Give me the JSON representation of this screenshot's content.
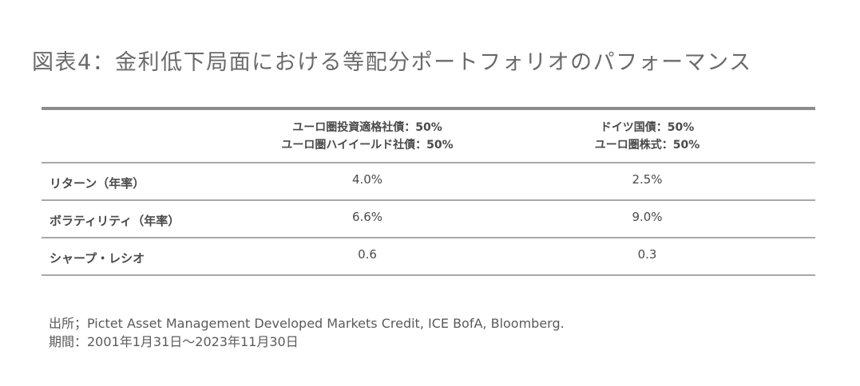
{
  "title": "図表4：金利低下局面における等配分ポートフォリオのパフォーマンス",
  "table": {
    "header": {
      "col1_line1": "ユーロ圏投資適格社債：50%",
      "col1_line2": "ユーロ圏ハイイールド社債：50%",
      "col2_line1": "ドイツ国債：50%",
      "col2_line2": "ユーロ圏株式：50%"
    },
    "rows": [
      {
        "label": "リターン（年率）",
        "col1": "4.0%",
        "col2": "2.5%"
      },
      {
        "label": "ボラティリティ（年率）",
        "col1": "6.6%",
        "col2": "9.0%"
      },
      {
        "label": "シャープ・レシオ",
        "col1": "0.6",
        "col2": "0.3"
      }
    ]
  },
  "footnote": {
    "source": "出所；Pictet Asset Management Developed Markets Credit, ICE BofA, Bloomberg.",
    "period": "期間：2001年1月31日〜2023年11月30日"
  }
}
